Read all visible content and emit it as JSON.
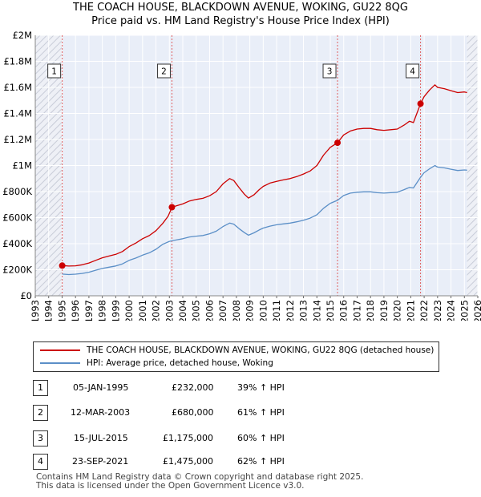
{
  "title": "THE COACH HOUSE, BLACKDOWN AVENUE, WOKING, GU22 8QG",
  "subtitle": "Price paid vs. HM Land Registry's House Price Index (HPI)",
  "chart_data": {
    "type": "line",
    "title": "THE COACH HOUSE, BLACKDOWN AVENUE, WOKING, GU22 8QG",
    "subtitle": "Price paid vs. HM Land Registry's House Price Index (HPI)",
    "xlabel": "",
    "ylabel": "",
    "xlim": [
      1993,
      2026
    ],
    "ylim": [
      0,
      2000000
    ],
    "y_ticks": [
      {
        "value": 0,
        "label": "£0"
      },
      {
        "value": 200000,
        "label": "£200K"
      },
      {
        "value": 400000,
        "label": "£400K"
      },
      {
        "value": 600000,
        "label": "£600K"
      },
      {
        "value": 800000,
        "label": "£800K"
      },
      {
        "value": 1000000,
        "label": "£1M"
      },
      {
        "value": 1200000,
        "label": "£1.2M"
      },
      {
        "value": 1400000,
        "label": "£1.4M"
      },
      {
        "value": 1600000,
        "label": "£1.6M"
      },
      {
        "value": 1800000,
        "label": "£1.8M"
      },
      {
        "value": 2000000,
        "label": "£2M"
      }
    ],
    "x_ticks": [
      "1993",
      "1994",
      "1995",
      "1996",
      "1997",
      "1998",
      "1999",
      "2000",
      "2001",
      "2002",
      "2003",
      "2004",
      "2005",
      "2006",
      "2007",
      "2008",
      "2009",
      "2010",
      "2011",
      "2012",
      "2013",
      "2014",
      "2015",
      "2016",
      "2017",
      "2018",
      "2019",
      "2020",
      "2021",
      "2022",
      "2023",
      "2024",
      "2025",
      "2026"
    ],
    "hatched_ranges": [
      [
        1993,
        1995.0
      ],
      [
        2025.2,
        2026
      ]
    ],
    "series": [
      {
        "name": "THE COACH HOUSE, BLACKDOWN AVENUE, WOKING, GU22 8QG (detached house)",
        "color": "#cc0000",
        "points": [
          [
            1995.0,
            232000
          ],
          [
            1995.5,
            228000
          ],
          [
            1996.0,
            230000
          ],
          [
            1996.5,
            238000
          ],
          [
            1997.0,
            252000
          ],
          [
            1997.5,
            272000
          ],
          [
            1998.0,
            292000
          ],
          [
            1998.5,
            305000
          ],
          [
            1999.0,
            318000
          ],
          [
            1999.5,
            340000
          ],
          [
            2000.0,
            378000
          ],
          [
            2000.5,
            405000
          ],
          [
            2001.0,
            438000
          ],
          [
            2001.5,
            462000
          ],
          [
            2002.0,
            500000
          ],
          [
            2002.5,
            555000
          ],
          [
            2002.9,
            610000
          ],
          [
            2003.2,
            680000
          ],
          [
            2003.5,
            690000
          ],
          [
            2004.0,
            705000
          ],
          [
            2004.5,
            728000
          ],
          [
            2005.0,
            740000
          ],
          [
            2005.5,
            748000
          ],
          [
            2006.0,
            768000
          ],
          [
            2006.5,
            800000
          ],
          [
            2007.0,
            860000
          ],
          [
            2007.5,
            900000
          ],
          [
            2007.8,
            885000
          ],
          [
            2008.2,
            830000
          ],
          [
            2008.6,
            780000
          ],
          [
            2008.9,
            750000
          ],
          [
            2009.3,
            775000
          ],
          [
            2009.7,
            815000
          ],
          [
            2010.0,
            840000
          ],
          [
            2010.5,
            865000
          ],
          [
            2011.0,
            878000
          ],
          [
            2011.5,
            890000
          ],
          [
            2012.0,
            900000
          ],
          [
            2012.5,
            915000
          ],
          [
            2013.0,
            935000
          ],
          [
            2013.5,
            958000
          ],
          [
            2014.0,
            1000000
          ],
          [
            2014.5,
            1080000
          ],
          [
            2015.0,
            1140000
          ],
          [
            2015.54,
            1175000
          ],
          [
            2016.0,
            1235000
          ],
          [
            2016.5,
            1265000
          ],
          [
            2017.0,
            1280000
          ],
          [
            2017.5,
            1285000
          ],
          [
            2018.0,
            1285000
          ],
          [
            2018.5,
            1275000
          ],
          [
            2019.0,
            1270000
          ],
          [
            2019.5,
            1275000
          ],
          [
            2020.0,
            1280000
          ],
          [
            2020.5,
            1310000
          ],
          [
            2020.9,
            1340000
          ],
          [
            2021.2,
            1330000
          ],
          [
            2021.73,
            1475000
          ],
          [
            2022.0,
            1530000
          ],
          [
            2022.4,
            1580000
          ],
          [
            2022.8,
            1620000
          ],
          [
            2023.0,
            1600000
          ],
          [
            2023.5,
            1590000
          ],
          [
            2024.0,
            1575000
          ],
          [
            2024.5,
            1560000
          ],
          [
            2025.0,
            1565000
          ],
          [
            2025.2,
            1560000
          ]
        ]
      },
      {
        "name": "HPI: Average price, detached house, Woking",
        "color": "#5b8fc7",
        "points": [
          [
            1995.0,
            167000
          ],
          [
            1995.5,
            163000
          ],
          [
            1996.0,
            166000
          ],
          [
            1996.5,
            172000
          ],
          [
            1997.0,
            181000
          ],
          [
            1997.5,
            196000
          ],
          [
            1998.0,
            210000
          ],
          [
            1998.5,
            220000
          ],
          [
            1999.0,
            229000
          ],
          [
            1999.5,
            245000
          ],
          [
            2000.0,
            272000
          ],
          [
            2000.5,
            290000
          ],
          [
            2001.0,
            312000
          ],
          [
            2001.5,
            330000
          ],
          [
            2002.0,
            357000
          ],
          [
            2002.5,
            395000
          ],
          [
            2003.0,
            418000
          ],
          [
            2003.2,
            422000
          ],
          [
            2003.5,
            428000
          ],
          [
            2004.0,
            438000
          ],
          [
            2004.5,
            452000
          ],
          [
            2005.0,
            458000
          ],
          [
            2005.5,
            463000
          ],
          [
            2006.0,
            476000
          ],
          [
            2006.5,
            496000
          ],
          [
            2007.0,
            532000
          ],
          [
            2007.5,
            558000
          ],
          [
            2007.8,
            550000
          ],
          [
            2008.2,
            515000
          ],
          [
            2008.6,
            485000
          ],
          [
            2008.9,
            465000
          ],
          [
            2009.3,
            483000
          ],
          [
            2009.7,
            505000
          ],
          [
            2010.0,
            520000
          ],
          [
            2010.5,
            535000
          ],
          [
            2011.0,
            545000
          ],
          [
            2011.5,
            552000
          ],
          [
            2012.0,
            558000
          ],
          [
            2012.5,
            568000
          ],
          [
            2013.0,
            580000
          ],
          [
            2013.5,
            596000
          ],
          [
            2014.0,
            622000
          ],
          [
            2014.5,
            672000
          ],
          [
            2015.0,
            710000
          ],
          [
            2015.54,
            733000
          ],
          [
            2016.0,
            770000
          ],
          [
            2016.5,
            788000
          ],
          [
            2017.0,
            795000
          ],
          [
            2017.5,
            798000
          ],
          [
            2018.0,
            798000
          ],
          [
            2018.5,
            792000
          ],
          [
            2019.0,
            788000
          ],
          [
            2019.5,
            792000
          ],
          [
            2020.0,
            795000
          ],
          [
            2020.5,
            815000
          ],
          [
            2020.9,
            832000
          ],
          [
            2021.2,
            828000
          ],
          [
            2021.73,
            910000
          ],
          [
            2022.0,
            945000
          ],
          [
            2022.4,
            975000
          ],
          [
            2022.8,
            1000000
          ],
          [
            2023.0,
            988000
          ],
          [
            2023.5,
            982000
          ],
          [
            2024.0,
            972000
          ],
          [
            2024.5,
            962000
          ],
          [
            2025.0,
            966000
          ],
          [
            2025.2,
            964000
          ]
        ]
      }
    ],
    "sales": [
      {
        "id": "1",
        "x": 1995.01,
        "price": 232000,
        "date": "05-JAN-1995",
        "price_label": "£232,000",
        "hpi": "39% ↑ HPI"
      },
      {
        "id": "2",
        "x": 2003.19,
        "price": 680000,
        "date": "12-MAR-2003",
        "price_label": "£680,000",
        "hpi": "61% ↑ HPI"
      },
      {
        "id": "3",
        "x": 2015.54,
        "price": 1175000,
        "date": "15-JUL-2015",
        "price_label": "£1,175,000",
        "hpi": "60% ↑ HPI"
      },
      {
        "id": "4",
        "x": 2021.73,
        "price": 1475000,
        "date": "23-SEP-2021",
        "price_label": "£1,475,000",
        "hpi": "62% ↑ HPI"
      }
    ],
    "legend": [
      {
        "label": "THE COACH HOUSE, BLACKDOWN AVENUE, WOKING, GU22 8QG (detached house)",
        "color": "#cc0000"
      },
      {
        "label": "HPI: Average price, detached house, Woking",
        "color": "#5b8fc7"
      }
    ]
  },
  "table": [
    {
      "id": "1",
      "date": "05-JAN-1995",
      "price": "£232,000",
      "hpi": "39% ↑ HPI"
    },
    {
      "id": "2",
      "date": "12-MAR-2003",
      "price": "£680,000",
      "hpi": "61% ↑ HPI"
    },
    {
      "id": "3",
      "date": "15-JUL-2015",
      "price": "£1,175,000",
      "hpi": "60% ↑ HPI"
    },
    {
      "id": "4",
      "date": "23-SEP-2021",
      "price": "£1,475,000",
      "hpi": "62% ↑ HPI"
    }
  ],
  "footer": {
    "line1": "Contains HM Land Registry data © Crown copyright and database right 2025.",
    "line2": "This data is licensed under the Open Government Licence v3.0."
  }
}
